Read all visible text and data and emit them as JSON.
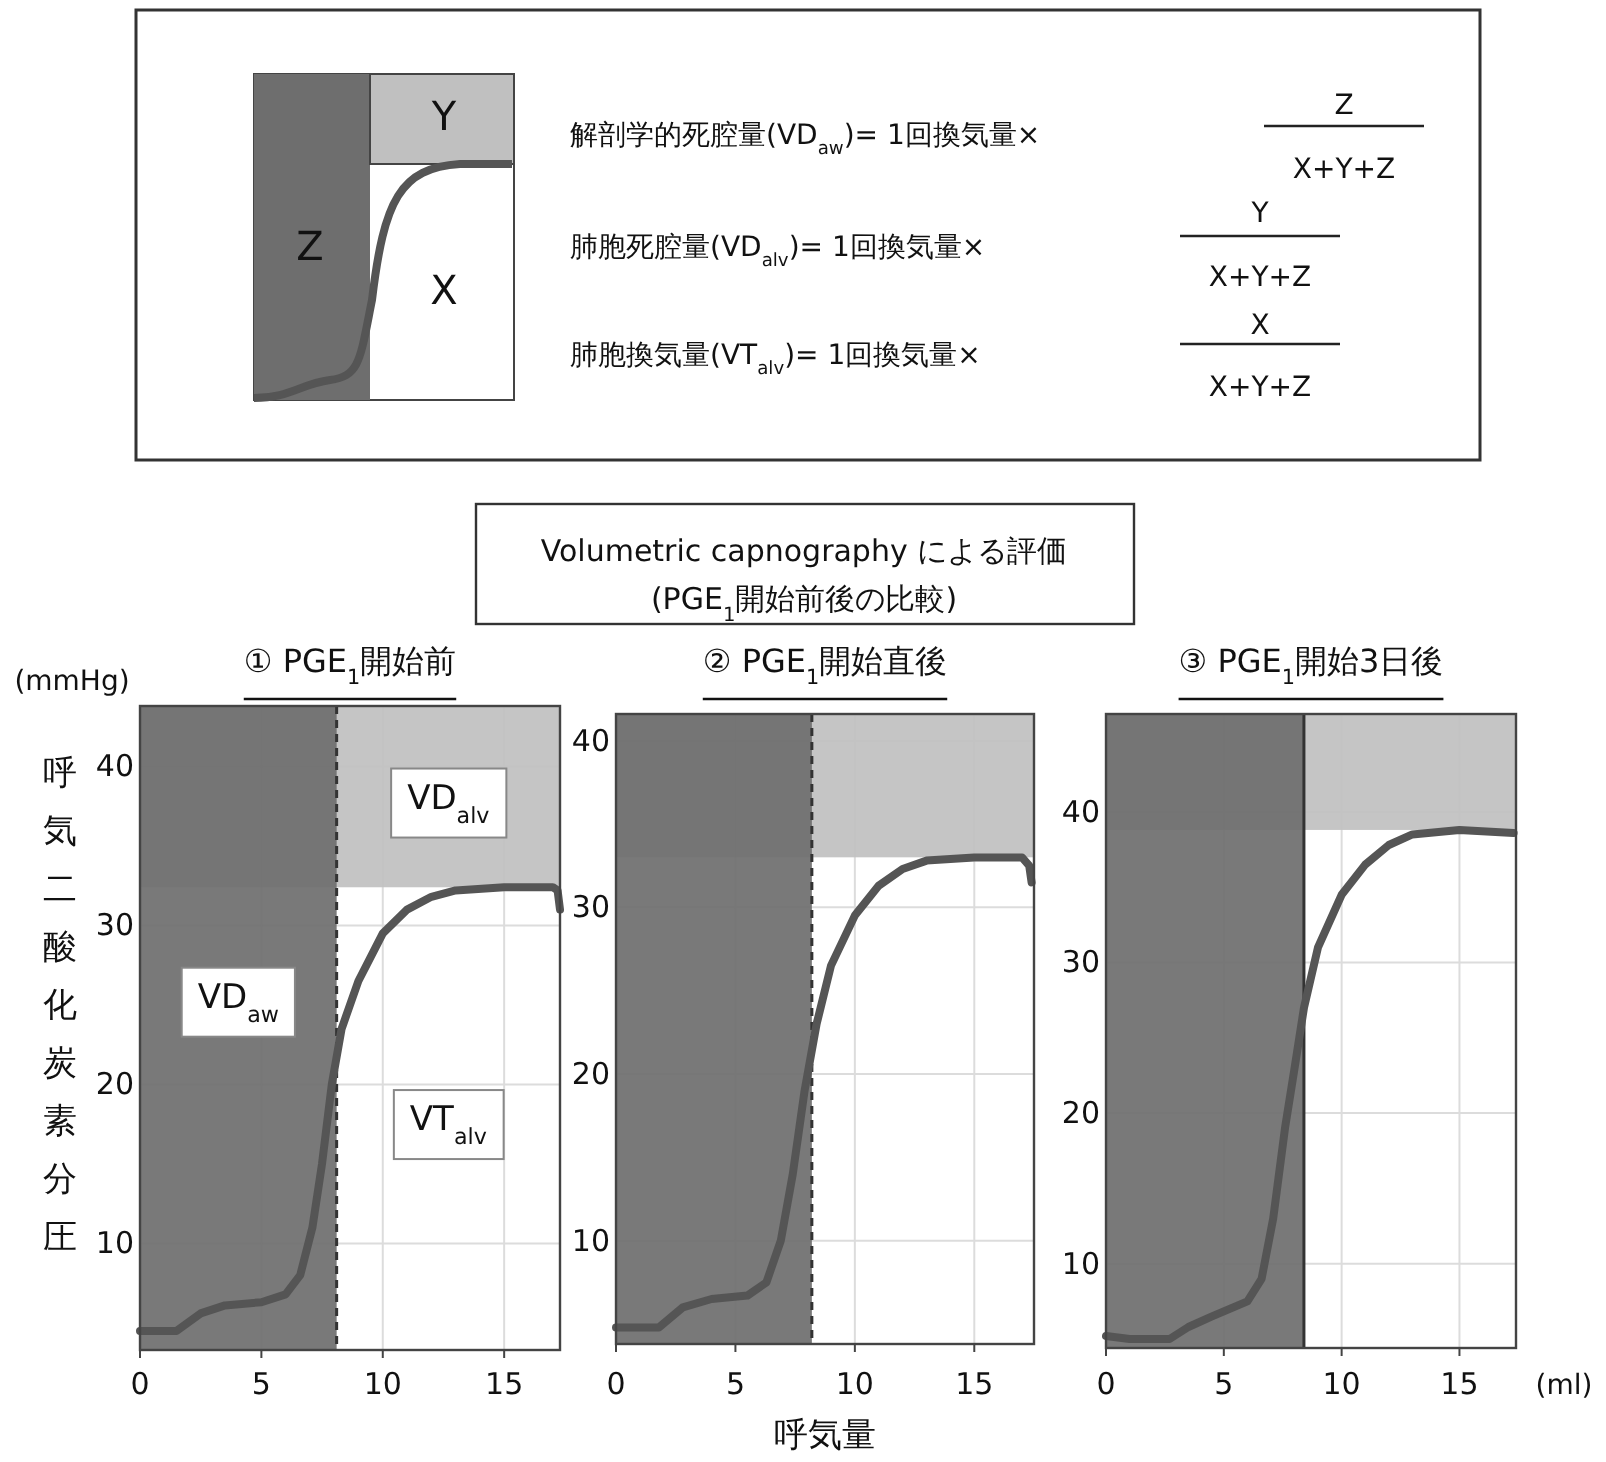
{
  "chart_data": [
    {
      "type": "other",
      "annotations": [
        "Z",
        "Y",
        "X",
        "解剖学的死腔量(VD$_{aw}$)= 1回換気量×",
        "Z",
        "X+Y+Z",
        "肺胞死腔量(VD$_{alv}$)= 1回換気量×",
        "Y",
        "X+Y+Z",
        "肺胞換気量(VT$_{alv}$)= 1回換気量×",
        "X",
        "X+Y+Z",
        "Volumetric capnography による評価",
        "(PGE$_{1}$開始前後の比較)"
      ]
    },
    {
      "type": "line",
      "title": "① PGE$_{1}$開始前",
      "ylabel": "呼気二酸化炭素分圧",
      "annotations": [
        "(mmHg)",
        "VT$_{alv}$"
      ],
      "xlim": [
        0,
        17.3
      ],
      "ylim": [
        3.3,
        43.8
      ],
      "xticks": [
        0,
        5,
        10,
        15
      ],
      "yticks": [
        10,
        20,
        30,
        40
      ],
      "grid": true,
      "bands": [
        {
          "axis": "y",
          "from": 32.4,
          "to": 43.8,
          "label": "VD$_{alv}$",
          "color": "#c0c0c0"
        },
        {
          "axis": "x",
          "from": 0,
          "to": 8.1,
          "label": "VD$_{aw}$",
          "color": "#6e6e6e"
        }
      ],
      "ref_lines": [
        {
          "axis": "x",
          "value": 8.1,
          "line_style": "dashed",
          "color": "#333333"
        }
      ],
      "series": [
        {
          "color": "#555555",
          "x": [
            0,
            1.5,
            2.5,
            3.5,
            5,
            6,
            6.6,
            7.1,
            7.5,
            7.9,
            8.3,
            9,
            10,
            11,
            12,
            13,
            15,
            17,
            17.2,
            17.3
          ],
          "values": [
            4.5,
            4.5,
            5.6,
            6.1,
            6.3,
            6.8,
            8,
            11,
            15,
            20,
            23.5,
            26.5,
            29.5,
            31,
            31.8,
            32.2,
            32.4,
            32.4,
            32.2,
            31
          ]
        }
      ]
    },
    {
      "type": "line",
      "title": "② PGE$_{1}$開始直後",
      "xlabel": "呼気量",
      "xlim": [
        0,
        17.5
      ],
      "ylim": [
        3.8,
        41.6
      ],
      "xticks": [
        0,
        5,
        10,
        15
      ],
      "yticks": [
        10,
        20,
        30,
        40
      ],
      "grid": true,
      "bands": [
        {
          "axis": "y",
          "from": 33,
          "to": 41.6,
          "color": "#c0c0c0"
        },
        {
          "axis": "x",
          "from": 0,
          "to": 8.2,
          "color": "#6e6e6e"
        }
      ],
      "ref_lines": [
        {
          "axis": "x",
          "value": 8.2,
          "line_style": "dashed",
          "color": "#333333"
        }
      ],
      "series": [
        {
          "color": "#555555",
          "x": [
            0,
            1.8,
            2.8,
            4,
            5.5,
            6.3,
            6.9,
            7.4,
            7.9,
            8.4,
            9,
            10,
            11,
            12,
            13,
            15,
            17,
            17.3,
            17.4
          ],
          "values": [
            4.8,
            4.8,
            6,
            6.5,
            6.7,
            7.5,
            10,
            14,
            19,
            23,
            26.5,
            29.5,
            31.3,
            32.3,
            32.8,
            33,
            33,
            32.5,
            31.5
          ]
        }
      ]
    },
    {
      "type": "line",
      "title": "③ PGE$_{1}$開始3日後",
      "annotations": [
        "(ml)"
      ],
      "xlim": [
        0,
        17.4
      ],
      "ylim": [
        4.4,
        46.5
      ],
      "xticks": [
        0,
        5,
        10,
        15
      ],
      "yticks": [
        10,
        20,
        30,
        40
      ],
      "grid": true,
      "bands": [
        {
          "axis": "y",
          "from": 38.8,
          "to": 46.5,
          "color": "#c0c0c0"
        },
        {
          "axis": "x",
          "from": 0,
          "to": 8.4,
          "color": "#6e6e6e"
        }
      ],
      "ref_lines": [
        {
          "axis": "x",
          "value": 8.4,
          "line_style": "solid",
          "color": "#333333"
        }
      ],
      "series": [
        {
          "color": "#555555",
          "x": [
            0,
            1,
            2.7,
            3.5,
            4.5,
            6,
            6.6,
            7.1,
            7.6,
            8,
            8.4,
            9,
            10,
            11,
            12,
            13,
            15,
            17.3
          ],
          "values": [
            5.2,
            5,
            5,
            5.8,
            6.5,
            7.5,
            9,
            13,
            19,
            23,
            27,
            31,
            34.5,
            36.5,
            37.8,
            38.5,
            38.8,
            38.6
          ]
        }
      ]
    }
  ]
}
